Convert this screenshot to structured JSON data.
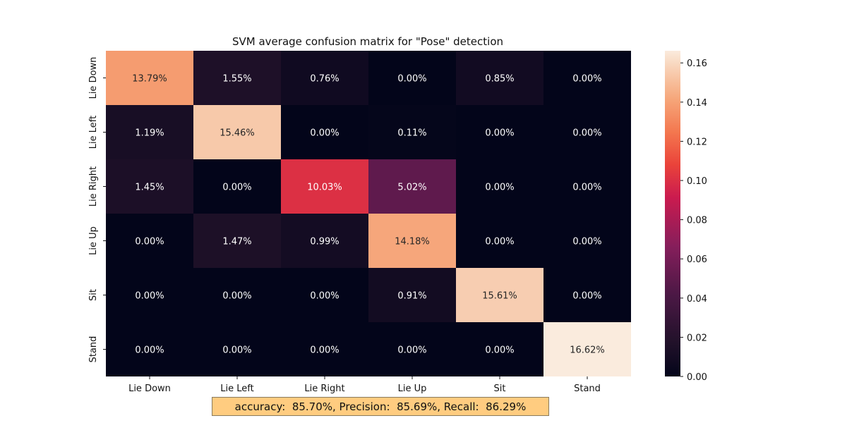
{
  "chart_data": {
    "type": "heatmap",
    "title": "SVM average confusion matrix for \"Pose\" detection",
    "xlabel": "",
    "ylabel": "",
    "x_categories": [
      "Lie Down",
      "Lie Left",
      "Lie Right",
      "Lie Up",
      "Sit",
      "Stand"
    ],
    "y_categories": [
      "Lie Down",
      "Lie Left",
      "Lie Right",
      "Lie Up",
      "Sit",
      "Stand"
    ],
    "values": [
      [
        0.1379,
        0.0155,
        0.0076,
        0.0,
        0.0085,
        0.0
      ],
      [
        0.0119,
        0.1546,
        0.0,
        0.0011,
        0.0,
        0.0
      ],
      [
        0.0145,
        0.0,
        0.1003,
        0.0502,
        0.0,
        0.0
      ],
      [
        0.0,
        0.0147,
        0.0099,
        0.1418,
        0.0,
        0.0
      ],
      [
        0.0,
        0.0,
        0.0,
        0.0091,
        0.1561,
        0.0
      ],
      [
        0.0,
        0.0,
        0.0,
        0.0,
        0.0,
        0.1662
      ]
    ],
    "cell_labels": [
      [
        "13.79%",
        "1.55%",
        "0.76%",
        "0.00%",
        "0.85%",
        "0.00%"
      ],
      [
        "1.19%",
        "15.46%",
        "0.00%",
        "0.11%",
        "0.00%",
        "0.00%"
      ],
      [
        "1.45%",
        "0.00%",
        "10.03%",
        "5.02%",
        "0.00%",
        "0.00%"
      ],
      [
        "0.00%",
        "1.47%",
        "0.99%",
        "14.18%",
        "0.00%",
        "0.00%"
      ],
      [
        "0.00%",
        "0.00%",
        "0.00%",
        "0.91%",
        "15.61%",
        "0.00%"
      ],
      [
        "0.00%",
        "0.00%",
        "0.00%",
        "0.00%",
        "0.00%",
        "16.62%"
      ]
    ],
    "colorbar": {
      "range": [
        0,
        0.1662
      ],
      "ticks": [
        "0.00",
        "0.02",
        "0.04",
        "0.06",
        "0.08",
        "0.10",
        "0.12",
        "0.14",
        "0.16"
      ],
      "colormap": "rocket"
    },
    "grid": false
  },
  "stats_text": "accuracy:  85.70%, Precision:  85.69%, Recall:  86.29%"
}
